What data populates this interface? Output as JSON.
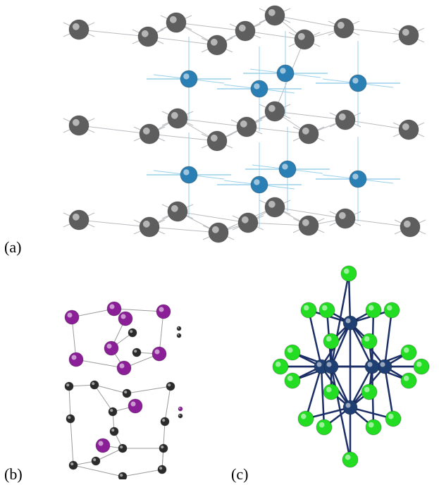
{
  "panels": {
    "a": {
      "label": "(a)"
    },
    "b": {
      "label": "(b)"
    },
    "c": {
      "label": "(c)"
    }
  },
  "colors": {
    "gray_atom": "#5e5e5e",
    "blue_atom": "#2a7fb4",
    "magenta_atom": "#8b1f97",
    "black_atom": "#2b2b2b",
    "green_atom": "#22dd22",
    "navy_atom": "#1f3f72",
    "gray_bond": "#b9bcc0",
    "blue_bond": "#9ad0ec",
    "navy_bond": "#1b2f66"
  }
}
